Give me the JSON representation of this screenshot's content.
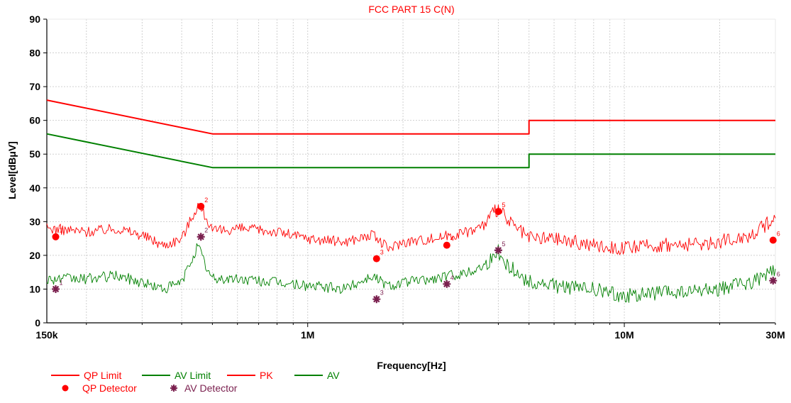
{
  "chart_data": {
    "type": "line",
    "title": "FCC PART 15 C(N)",
    "xlabel": "Frequency[Hz]",
    "ylabel": "Level[dBμV]",
    "x_scale": "log",
    "xlim": [
      150000,
      30000000
    ],
    "ylim": [
      0,
      90
    ],
    "grid": true,
    "x_ticks": [
      {
        "value": 150000,
        "label": "150k"
      },
      {
        "value": 1000000,
        "label": "1M"
      },
      {
        "value": 10000000,
        "label": "10M"
      },
      {
        "value": 30000000,
        "label": "30M"
      }
    ],
    "y_ticks": [
      0,
      10,
      20,
      30,
      40,
      50,
      60,
      70,
      80,
      90
    ],
    "colors": {
      "red": "#ff0000",
      "green": "#008000",
      "marker_av": "#7a1f4e",
      "grid": "#d0d0d0"
    },
    "series": [
      {
        "name": "QP Limit",
        "type": "line",
        "color": "#ff0000",
        "x": [
          150000,
          500000,
          500000,
          5000000,
          5000000,
          30000000
        ],
        "y": [
          66,
          56,
          56,
          56,
          60,
          60
        ]
      },
      {
        "name": "AV Limit",
        "type": "line",
        "color": "#008000",
        "x": [
          150000,
          500000,
          500000,
          5000000,
          5000000,
          30000000
        ],
        "y": [
          56,
          46,
          46,
          46,
          50,
          50
        ]
      },
      {
        "name": "PK",
        "type": "line",
        "color": "#ff0000",
        "x": [
          150000,
          200000,
          250000,
          300000,
          350000,
          400000,
          450000,
          480000,
          500000,
          600000,
          800000,
          1000000,
          1300000,
          1600000,
          1800000,
          2000000,
          2500000,
          2800000,
          3200000,
          3600000,
          4000000,
          4300000,
          5000000,
          6000000,
          8000000,
          10000000,
          13000000,
          16000000,
          20000000,
          25000000,
          28000000,
          30000000
        ],
        "y": [
          28,
          27,
          28,
          26,
          23,
          25,
          35,
          31,
          27,
          28,
          27,
          25,
          24,
          26,
          22,
          24,
          25,
          26,
          27,
          29,
          34,
          30,
          25,
          25,
          23,
          22,
          23,
          23,
          24,
          26,
          29,
          31
        ]
      },
      {
        "name": "AV",
        "type": "line",
        "color": "#008000",
        "x": [
          150000,
          200000,
          250000,
          300000,
          350000,
          400000,
          450000,
          480000,
          500000,
          600000,
          800000,
          1000000,
          1300000,
          1600000,
          1800000,
          2000000,
          2500000,
          2800000,
          3200000,
          3600000,
          4000000,
          4300000,
          5000000,
          6000000,
          8000000,
          10000000,
          13000000,
          16000000,
          20000000,
          25000000,
          28000000,
          30000000
        ],
        "y": [
          13,
          13,
          14,
          12,
          10,
          12,
          23,
          16,
          13,
          13,
          12,
          11,
          10,
          14,
          11,
          12,
          13,
          14,
          15,
          17,
          21,
          17,
          12,
          11,
          10,
          8,
          9,
          9,
          10,
          12,
          14,
          16
        ]
      },
      {
        "name": "QP Detector",
        "type": "scatter",
        "marker": "circle",
        "color": "#ff0000",
        "points": [
          {
            "label": "1",
            "x": 160000,
            "y": 25.5
          },
          {
            "label": "2",
            "x": 460000,
            "y": 34.5
          },
          {
            "label": "3",
            "x": 1650000,
            "y": 19
          },
          {
            "label": "4",
            "x": 2750000,
            "y": 23
          },
          {
            "label": "5",
            "x": 4000000,
            "y": 33
          },
          {
            "label": "6",
            "x": 29500000,
            "y": 24.5
          }
        ]
      },
      {
        "name": "AV Detector",
        "type": "scatter",
        "marker": "star",
        "color": "#7a1f4e",
        "points": [
          {
            "label": "1",
            "x": 160000,
            "y": 10
          },
          {
            "label": "2",
            "x": 460000,
            "y": 25.5
          },
          {
            "label": "3",
            "x": 1650000,
            "y": 7
          },
          {
            "label": "4",
            "x": 2750000,
            "y": 11.5
          },
          {
            "label": "5",
            "x": 4000000,
            "y": 21.5
          },
          {
            "label": "6",
            "x": 29500000,
            "y": 12.5
          }
        ]
      }
    ],
    "legend": {
      "placement": "bottom-left",
      "entries": [
        {
          "label": "QP Limit",
          "symbol": "line",
          "color": "#ff0000"
        },
        {
          "label": "AV Limit",
          "symbol": "line",
          "color": "#008000"
        },
        {
          "label": "PK",
          "symbol": "line",
          "color": "#ff0000"
        },
        {
          "label": "AV",
          "symbol": "line",
          "color": "#008000"
        },
        {
          "label": "QP Detector",
          "symbol": "circle",
          "color": "#ff0000"
        },
        {
          "label": "AV Detector",
          "symbol": "star",
          "color": "#7a1f4e"
        }
      ]
    }
  }
}
